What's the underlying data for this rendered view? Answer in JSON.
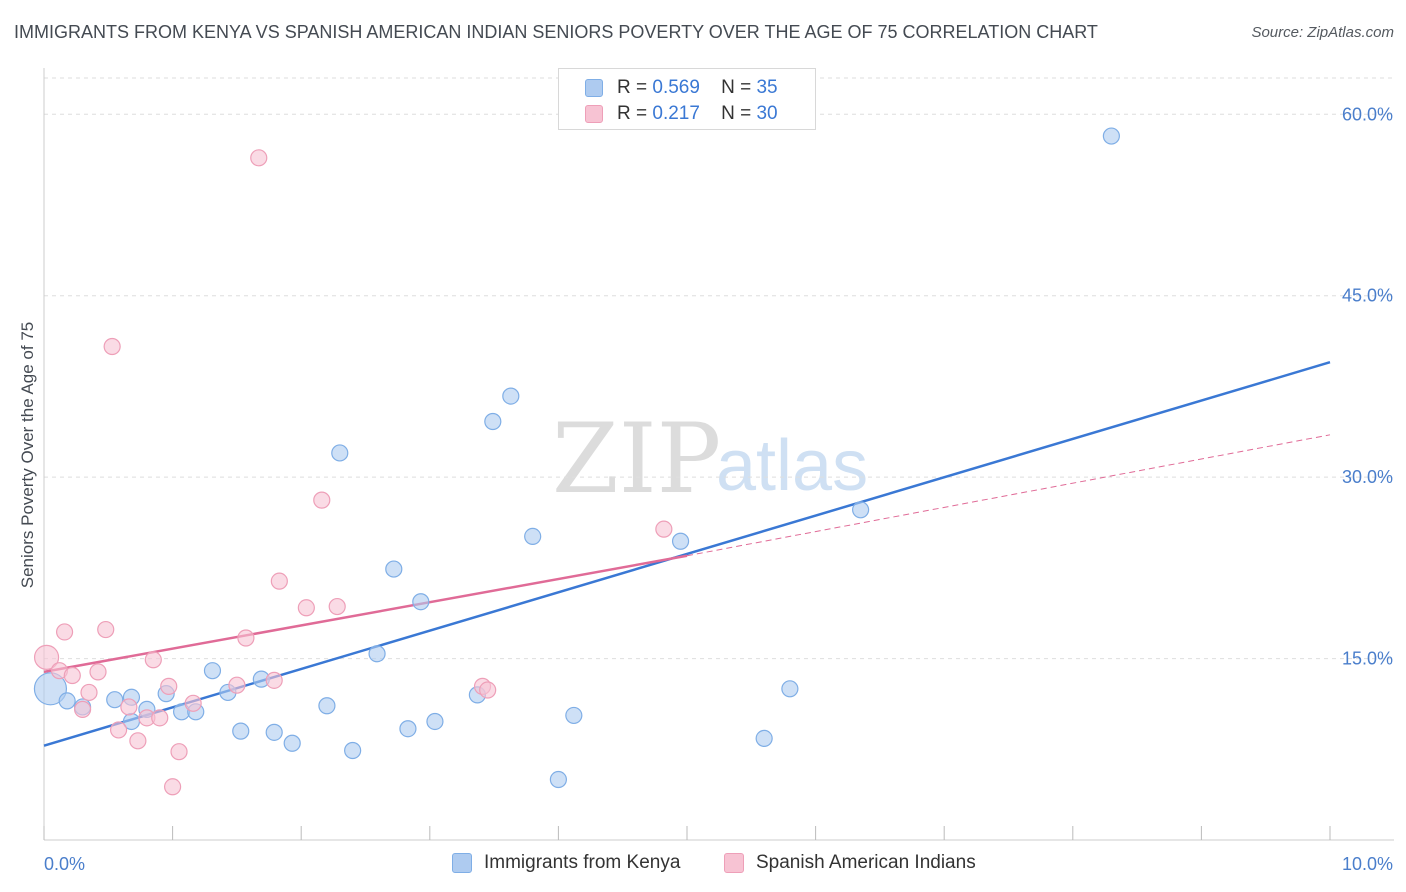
{
  "title": "IMMIGRANTS FROM KENYA VS SPANISH AMERICAN INDIAN SENIORS POVERTY OVER THE AGE OF 75 CORRELATION CHART",
  "source": "Source: ZipAtlas.com",
  "watermark": {
    "zip": "ZIP",
    "atlas": "atlas"
  },
  "legend": {
    "r_label": "R =",
    "n_label": "N =",
    "rows": [
      {
        "r": "0.569",
        "n": "35",
        "color": "#aecbf0",
        "border": "#7faee6"
      },
      {
        "r": "0.217",
        "n": "30",
        "color": "#f7c3d3",
        "border": "#ee9fb8"
      }
    ]
  },
  "chart_data": {
    "type": "scatter",
    "title": "IMMIGRANTS FROM KENYA VS SPANISH AMERICAN INDIAN SENIORS POVERTY OVER THE AGE OF 75 CORRELATION CHART",
    "xlabel": "",
    "ylabel": "Seniors Poverty Over the Age of 75",
    "xlim": [
      0,
      10
    ],
    "ylim": [
      0,
      63
    ],
    "x_tick_labels": [
      "0.0%",
      "10.0%"
    ],
    "y_ticks": [
      15,
      30,
      45,
      60
    ],
    "y_tick_labels": [
      "15.0%",
      "30.0%",
      "45.0%",
      "60.0%"
    ],
    "grid": true,
    "legend_position": "top-center",
    "series": [
      {
        "name": "Immigrants from Kenya",
        "color": "#aecbf0",
        "stroke": "#7faee6",
        "line_color": "#3a78d4",
        "trend": {
          "x": [
            0,
            10
          ],
          "y": [
            7.8,
            39.5
          ]
        },
        "points": [
          {
            "x": 0.05,
            "y": 12.5,
            "r": 16
          },
          {
            "x": 0.18,
            "y": 11.5
          },
          {
            "x": 0.3,
            "y": 11.0
          },
          {
            "x": 0.55,
            "y": 11.6
          },
          {
            "x": 0.68,
            "y": 11.8
          },
          {
            "x": 0.68,
            "y": 9.8
          },
          {
            "x": 0.8,
            "y": 10.8
          },
          {
            "x": 0.95,
            "y": 12.1
          },
          {
            "x": 1.07,
            "y": 10.6
          },
          {
            "x": 1.18,
            "y": 10.6
          },
          {
            "x": 1.31,
            "y": 14.0
          },
          {
            "x": 1.43,
            "y": 12.2
          },
          {
            "x": 1.53,
            "y": 9.0
          },
          {
            "x": 1.69,
            "y": 13.3
          },
          {
            "x": 1.79,
            "y": 8.9
          },
          {
            "x": 1.93,
            "y": 8.0
          },
          {
            "x": 2.2,
            "y": 11.1
          },
          {
            "x": 2.3,
            "y": 32.0
          },
          {
            "x": 2.4,
            "y": 7.4
          },
          {
            "x": 2.59,
            "y": 15.4
          },
          {
            "x": 2.72,
            "y": 22.4
          },
          {
            "x": 2.83,
            "y": 9.2
          },
          {
            "x": 2.93,
            "y": 19.7
          },
          {
            "x": 3.04,
            "y": 9.8
          },
          {
            "x": 3.37,
            "y": 12.0
          },
          {
            "x": 3.49,
            "y": 34.6
          },
          {
            "x": 3.63,
            "y": 36.7
          },
          {
            "x": 3.8,
            "y": 25.1
          },
          {
            "x": 4.0,
            "y": 5.0
          },
          {
            "x": 4.12,
            "y": 10.3
          },
          {
            "x": 4.95,
            "y": 24.7
          },
          {
            "x": 5.6,
            "y": 8.4
          },
          {
            "x": 5.8,
            "y": 12.5
          },
          {
            "x": 6.35,
            "y": 27.3
          },
          {
            "x": 8.3,
            "y": 58.2
          }
        ]
      },
      {
        "name": "Spanish American Indians",
        "color": "#f7c3d3",
        "stroke": "#ee9fb8",
        "line_color": "#e06b97",
        "trend": {
          "x": [
            0,
            5.0,
            10
          ],
          "y": [
            13.9,
            23.5,
            33.5
          ]
        },
        "trend_solid_end_x": 5.0,
        "points": [
          {
            "x": 0.02,
            "y": 15.1,
            "r": 12
          },
          {
            "x": 0.12,
            "y": 14.0
          },
          {
            "x": 0.16,
            "y": 17.2
          },
          {
            "x": 0.22,
            "y": 13.6
          },
          {
            "x": 0.3,
            "y": 10.8
          },
          {
            "x": 0.35,
            "y": 12.2
          },
          {
            "x": 0.42,
            "y": 13.9
          },
          {
            "x": 0.48,
            "y": 17.4
          },
          {
            "x": 0.53,
            "y": 40.8
          },
          {
            "x": 0.58,
            "y": 9.1
          },
          {
            "x": 0.66,
            "y": 11.0
          },
          {
            "x": 0.73,
            "y": 8.2
          },
          {
            "x": 0.8,
            "y": 10.1
          },
          {
            "x": 0.85,
            "y": 14.9
          },
          {
            "x": 0.9,
            "y": 10.1
          },
          {
            "x": 0.97,
            "y": 12.7
          },
          {
            "x": 1.0,
            "y": 4.4
          },
          {
            "x": 1.05,
            "y": 7.3
          },
          {
            "x": 1.16,
            "y": 11.3
          },
          {
            "x": 1.5,
            "y": 12.8
          },
          {
            "x": 1.57,
            "y": 16.7
          },
          {
            "x": 1.67,
            "y": 56.4
          },
          {
            "x": 1.79,
            "y": 13.2
          },
          {
            "x": 1.83,
            "y": 21.4
          },
          {
            "x": 2.04,
            "y": 19.2
          },
          {
            "x": 2.16,
            "y": 28.1
          },
          {
            "x": 2.28,
            "y": 19.3
          },
          {
            "x": 3.41,
            "y": 12.7
          },
          {
            "x": 3.45,
            "y": 12.4
          },
          {
            "x": 4.82,
            "y": 25.7
          }
        ]
      }
    ]
  }
}
